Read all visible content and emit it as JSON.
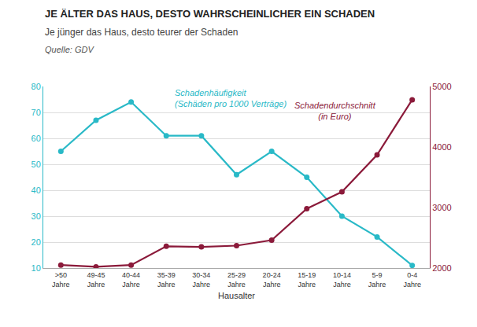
{
  "chart_data": {
    "type": "line",
    "title": "JE ÄLTER DAS HAUS, DESTO WAHRSCHEINLICHER EIN SCHADEN",
    "subtitle": "Je jünger das Haus, desto teurer der Schaden",
    "source": "Quelle: GDV",
    "x_label": "Hausalter",
    "categories": [
      ">50\nJahre",
      "49-45\nJahre",
      "40-44\nJahre",
      "35-39\nJahre",
      "30-34\nJahre",
      "25-29\nJahre",
      "20-24\nJahre",
      "15-19\nJahre",
      "10-14\nJahre",
      "5-9\nJahre",
      "0-4\nJahre"
    ],
    "series": [
      {
        "name": "Schadenhäufigkeit",
        "label_note": "(Schäden pro 1000 Verträge)",
        "color": "#29B9C7",
        "marker": "circle",
        "axis": "y",
        "values": [
          55,
          67,
          74,
          61,
          61,
          46,
          55,
          45,
          30,
          22,
          11
        ]
      },
      {
        "name": "Schadendurchschnitt",
        "label_note": "(in Euro)",
        "color": "#8B1A3A",
        "marker": "circle",
        "axis": "y2",
        "values": [
          2050,
          2020,
          2050,
          2360,
          2350,
          2370,
          2460,
          2980,
          3260,
          3870,
          4780
        ]
      }
    ],
    "ylim": [
      10,
      80
    ],
    "yticks": [
      10,
      20,
      30,
      40,
      50,
      60,
      70,
      80
    ],
    "y2lim": [
      2000,
      5000
    ],
    "y2ticks": [
      2000,
      3000,
      4000,
      5000
    ],
    "grid": true
  }
}
